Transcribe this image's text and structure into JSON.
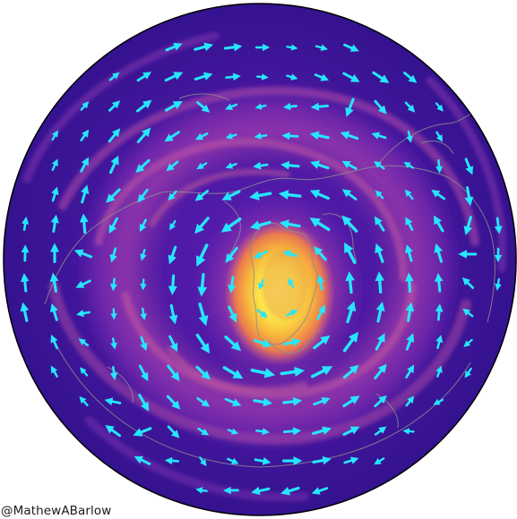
{
  "credit": "@MathewABarlow",
  "colors": {
    "background": "#3b139b",
    "field_mid": "#8e2fb4",
    "field_band": "#b84aa8",
    "field_hot": "#ef8a4d",
    "field_core": "#fde94a",
    "arrow": "#26e6ff",
    "coastline": "#8c8c8c",
    "disc_edge": "#000000"
  },
  "icons": {
    "wind_vector": "arrow-icon"
  }
}
